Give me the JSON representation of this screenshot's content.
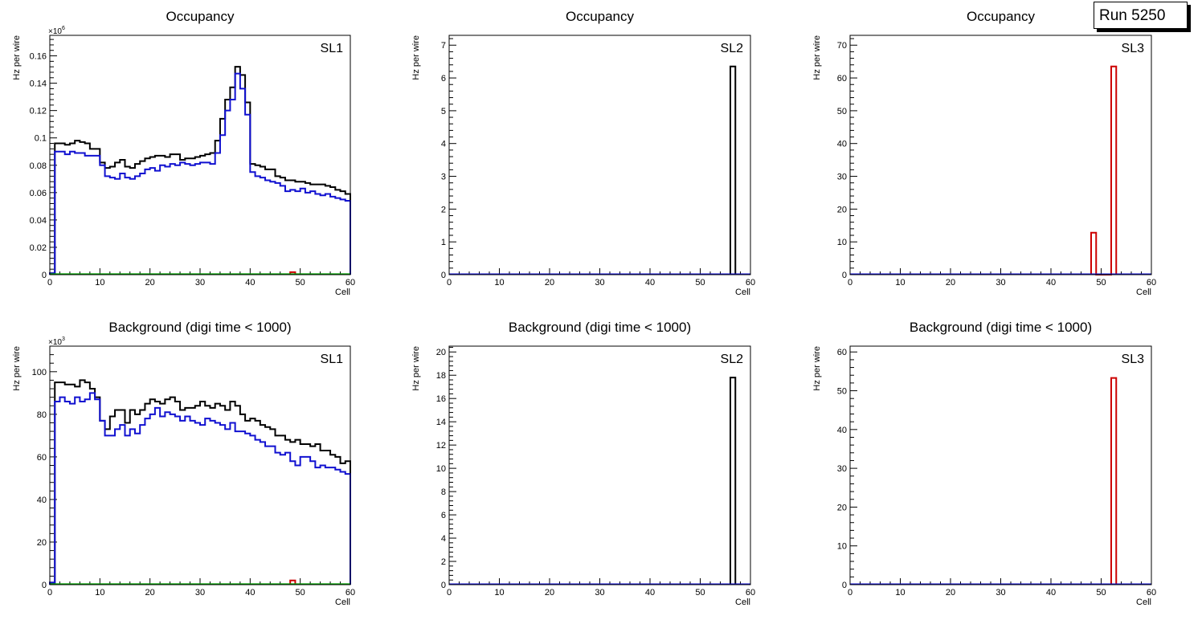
{
  "run_label": "Run 5250",
  "chart_data": [
    {
      "type": "histogram",
      "panel": "top-left",
      "title": "Occupancy",
      "label": "SL1",
      "xlabel": "Cell",
      "ylabel": "Hz per wire",
      "exponent": "×10^{6}",
      "xlim": [
        0,
        60
      ],
      "ylim": [
        0,
        0.175
      ],
      "xticks": [
        0,
        10,
        20,
        30,
        40,
        50,
        60
      ],
      "yticks": [
        0,
        0.02,
        0.04,
        0.06,
        0.08,
        0.1,
        0.12,
        0.14,
        0.16
      ],
      "ytick_labels": [
        "0",
        "0.02",
        "0.04",
        "0.06",
        "0.08",
        "0.1",
        "0.12",
        "0.14",
        "0.16"
      ],
      "series": [
        {
          "name": "black",
          "color": "#000000",
          "bin_start": 0,
          "values": [
            0.001,
            0.096,
            0.096,
            0.095,
            0.096,
            0.098,
            0.097,
            0.096,
            0.092,
            0.092,
            0.082,
            0.078,
            0.079,
            0.082,
            0.084,
            0.079,
            0.078,
            0.081,
            0.083,
            0.085,
            0.086,
            0.087,
            0.087,
            0.086,
            0.088,
            0.088,
            0.084,
            0.085,
            0.085,
            0.086,
            0.087,
            0.088,
            0.089,
            0.098,
            0.114,
            0.128,
            0.137,
            0.152,
            0.146,
            0.126,
            0.081,
            0.08,
            0.079,
            0.077,
            0.077,
            0.072,
            0.071,
            0.069,
            0.069,
            0.068,
            0.068,
            0.067,
            0.066,
            0.066,
            0.066,
            0.065,
            0.064,
            0.062,
            0.061,
            0.059
          ]
        },
        {
          "name": "blue",
          "color": "#1010d0",
          "bin_start": 0,
          "values": [
            0.001,
            0.09,
            0.09,
            0.088,
            0.09,
            0.089,
            0.089,
            0.087,
            0.087,
            0.087,
            0.08,
            0.072,
            0.071,
            0.07,
            0.074,
            0.071,
            0.07,
            0.072,
            0.074,
            0.077,
            0.078,
            0.076,
            0.08,
            0.079,
            0.081,
            0.08,
            0.082,
            0.081,
            0.08,
            0.081,
            0.082,
            0.082,
            0.081,
            0.089,
            0.102,
            0.12,
            0.128,
            0.147,
            0.136,
            0.117,
            0.075,
            0.072,
            0.071,
            0.069,
            0.068,
            0.067,
            0.065,
            0.061,
            0.062,
            0.061,
            0.063,
            0.06,
            0.061,
            0.059,
            0.058,
            0.059,
            0.057,
            0.056,
            0.055,
            0.054
          ]
        },
        {
          "name": "red",
          "color": "#cc0000",
          "bin_start": 48,
          "values": [
            0.0018
          ]
        },
        {
          "name": "green",
          "color": "#00a000",
          "bin_start": 0,
          "values": [
            0.0005
          ]
        }
      ]
    },
    {
      "type": "histogram",
      "panel": "top-middle",
      "title": "Occupancy",
      "label": "SL2",
      "xlabel": "Cell",
      "ylabel": "Hz per wire",
      "xlim": [
        0,
        60
      ],
      "ylim": [
        0,
        7.3
      ],
      "xticks": [
        0,
        10,
        20,
        30,
        40,
        50,
        60
      ],
      "yticks": [
        0,
        1,
        2,
        3,
        4,
        5,
        6,
        7
      ],
      "ytick_labels": [
        "0",
        "1",
        "2",
        "3",
        "4",
        "5",
        "6",
        "7"
      ],
      "series": [
        {
          "name": "black",
          "color": "#000000",
          "bin_start": 56,
          "values": [
            6.35
          ]
        },
        {
          "name": "blue",
          "color": "#1010d0",
          "bin_start": 0,
          "values": [
            0
          ]
        }
      ]
    },
    {
      "type": "histogram",
      "panel": "top-right",
      "title": "Occupancy",
      "label": "SL3",
      "xlabel": "Cell",
      "ylabel": "Hz per wire",
      "xlim": [
        0,
        60
      ],
      "ylim": [
        0,
        73
      ],
      "xticks": [
        0,
        10,
        20,
        30,
        40,
        50,
        60
      ],
      "yticks": [
        0,
        10,
        20,
        30,
        40,
        50,
        60,
        70
      ],
      "ytick_labels": [
        "0",
        "10",
        "20",
        "30",
        "40",
        "50",
        "60",
        "70"
      ],
      "series": [
        {
          "name": "red",
          "color": "#cc0000",
          "bin_start": 48,
          "values": [
            12.8,
            0,
            0,
            0,
            63.5
          ]
        },
        {
          "name": "blue",
          "color": "#1010d0",
          "bin_start": 0,
          "values": [
            0
          ]
        }
      ]
    },
    {
      "type": "histogram",
      "panel": "bottom-left",
      "title": "Background (digi time < 1000)",
      "label": "SL1",
      "xlabel": "Cell",
      "ylabel": "Hz per wire",
      "exponent": "×10^{3}",
      "xlim": [
        0,
        60
      ],
      "ylim": [
        0,
        112
      ],
      "xticks": [
        0,
        10,
        20,
        30,
        40,
        50,
        60
      ],
      "yticks": [
        0,
        20,
        40,
        60,
        80,
        100
      ],
      "ytick_labels": [
        "0",
        "20",
        "40",
        "60",
        "80",
        "100"
      ],
      "series": [
        {
          "name": "black",
          "color": "#000000",
          "bin_start": 0,
          "values": [
            1,
            95,
            95,
            94,
            94,
            93,
            96,
            95,
            92,
            88,
            77,
            73,
            79,
            82,
            82,
            76,
            82,
            80,
            82,
            85,
            87,
            86,
            85,
            87,
            88,
            86,
            82,
            83,
            83,
            84,
            86,
            84,
            83,
            85,
            84,
            82,
            86,
            84,
            80,
            77,
            78,
            77,
            75,
            74,
            73,
            70,
            70,
            68,
            67,
            68,
            66,
            66,
            65,
            66,
            63,
            63,
            61,
            60,
            57,
            58
          ]
        },
        {
          "name": "blue",
          "color": "#1010d0",
          "bin_start": 0,
          "values": [
            1,
            86,
            88,
            86,
            85,
            88,
            86,
            87,
            90,
            87,
            77,
            70,
            70,
            73,
            75,
            70,
            73,
            71,
            75,
            78,
            80,
            83,
            79,
            81,
            80,
            79,
            77,
            79,
            77,
            76,
            75,
            78,
            77,
            76,
            75,
            73,
            76,
            72,
            72,
            71,
            70,
            68,
            67,
            65,
            65,
            62,
            61,
            62,
            58,
            56,
            60,
            60,
            58,
            55,
            56,
            55,
            55,
            54,
            53,
            52
          ]
        },
        {
          "name": "red",
          "color": "#cc0000",
          "bin_start": 48,
          "values": [
            2
          ]
        },
        {
          "name": "green",
          "color": "#00a000",
          "bin_start": 0,
          "values": [
            0.3
          ]
        }
      ]
    },
    {
      "type": "histogram",
      "panel": "bottom-middle",
      "title": "Background (digi time < 1000)",
      "label": "SL2",
      "xlabel": "Cell",
      "ylabel": "Hz per wire",
      "xlim": [
        0,
        60
      ],
      "ylim": [
        0,
        20.5
      ],
      "xticks": [
        0,
        10,
        20,
        30,
        40,
        50,
        60
      ],
      "yticks": [
        0,
        2,
        4,
        6,
        8,
        10,
        12,
        14,
        16,
        18,
        20
      ],
      "ytick_labels": [
        "0",
        "2",
        "4",
        "6",
        "8",
        "10",
        "12",
        "14",
        "16",
        "18",
        "20"
      ],
      "series": [
        {
          "name": "black",
          "color": "#000000",
          "bin_start": 56,
          "values": [
            17.8
          ]
        },
        {
          "name": "blue",
          "color": "#1010d0",
          "bin_start": 0,
          "values": [
            0
          ]
        }
      ]
    },
    {
      "type": "histogram",
      "panel": "bottom-right",
      "title": "Background (digi time < 1000)",
      "label": "SL3",
      "xlabel": "Cell",
      "ylabel": "Hz per wire",
      "xlim": [
        0,
        60
      ],
      "ylim": [
        0,
        61.5
      ],
      "xticks": [
        0,
        10,
        20,
        30,
        40,
        50,
        60
      ],
      "yticks": [
        0,
        10,
        20,
        30,
        40,
        50,
        60
      ],
      "ytick_labels": [
        "0",
        "10",
        "20",
        "30",
        "40",
        "50",
        "60"
      ],
      "series": [
        {
          "name": "red",
          "color": "#cc0000",
          "bin_start": 52,
          "values": [
            53.3
          ]
        },
        {
          "name": "blue",
          "color": "#1010d0",
          "bin_start": 0,
          "values": [
            0
          ]
        }
      ]
    }
  ]
}
